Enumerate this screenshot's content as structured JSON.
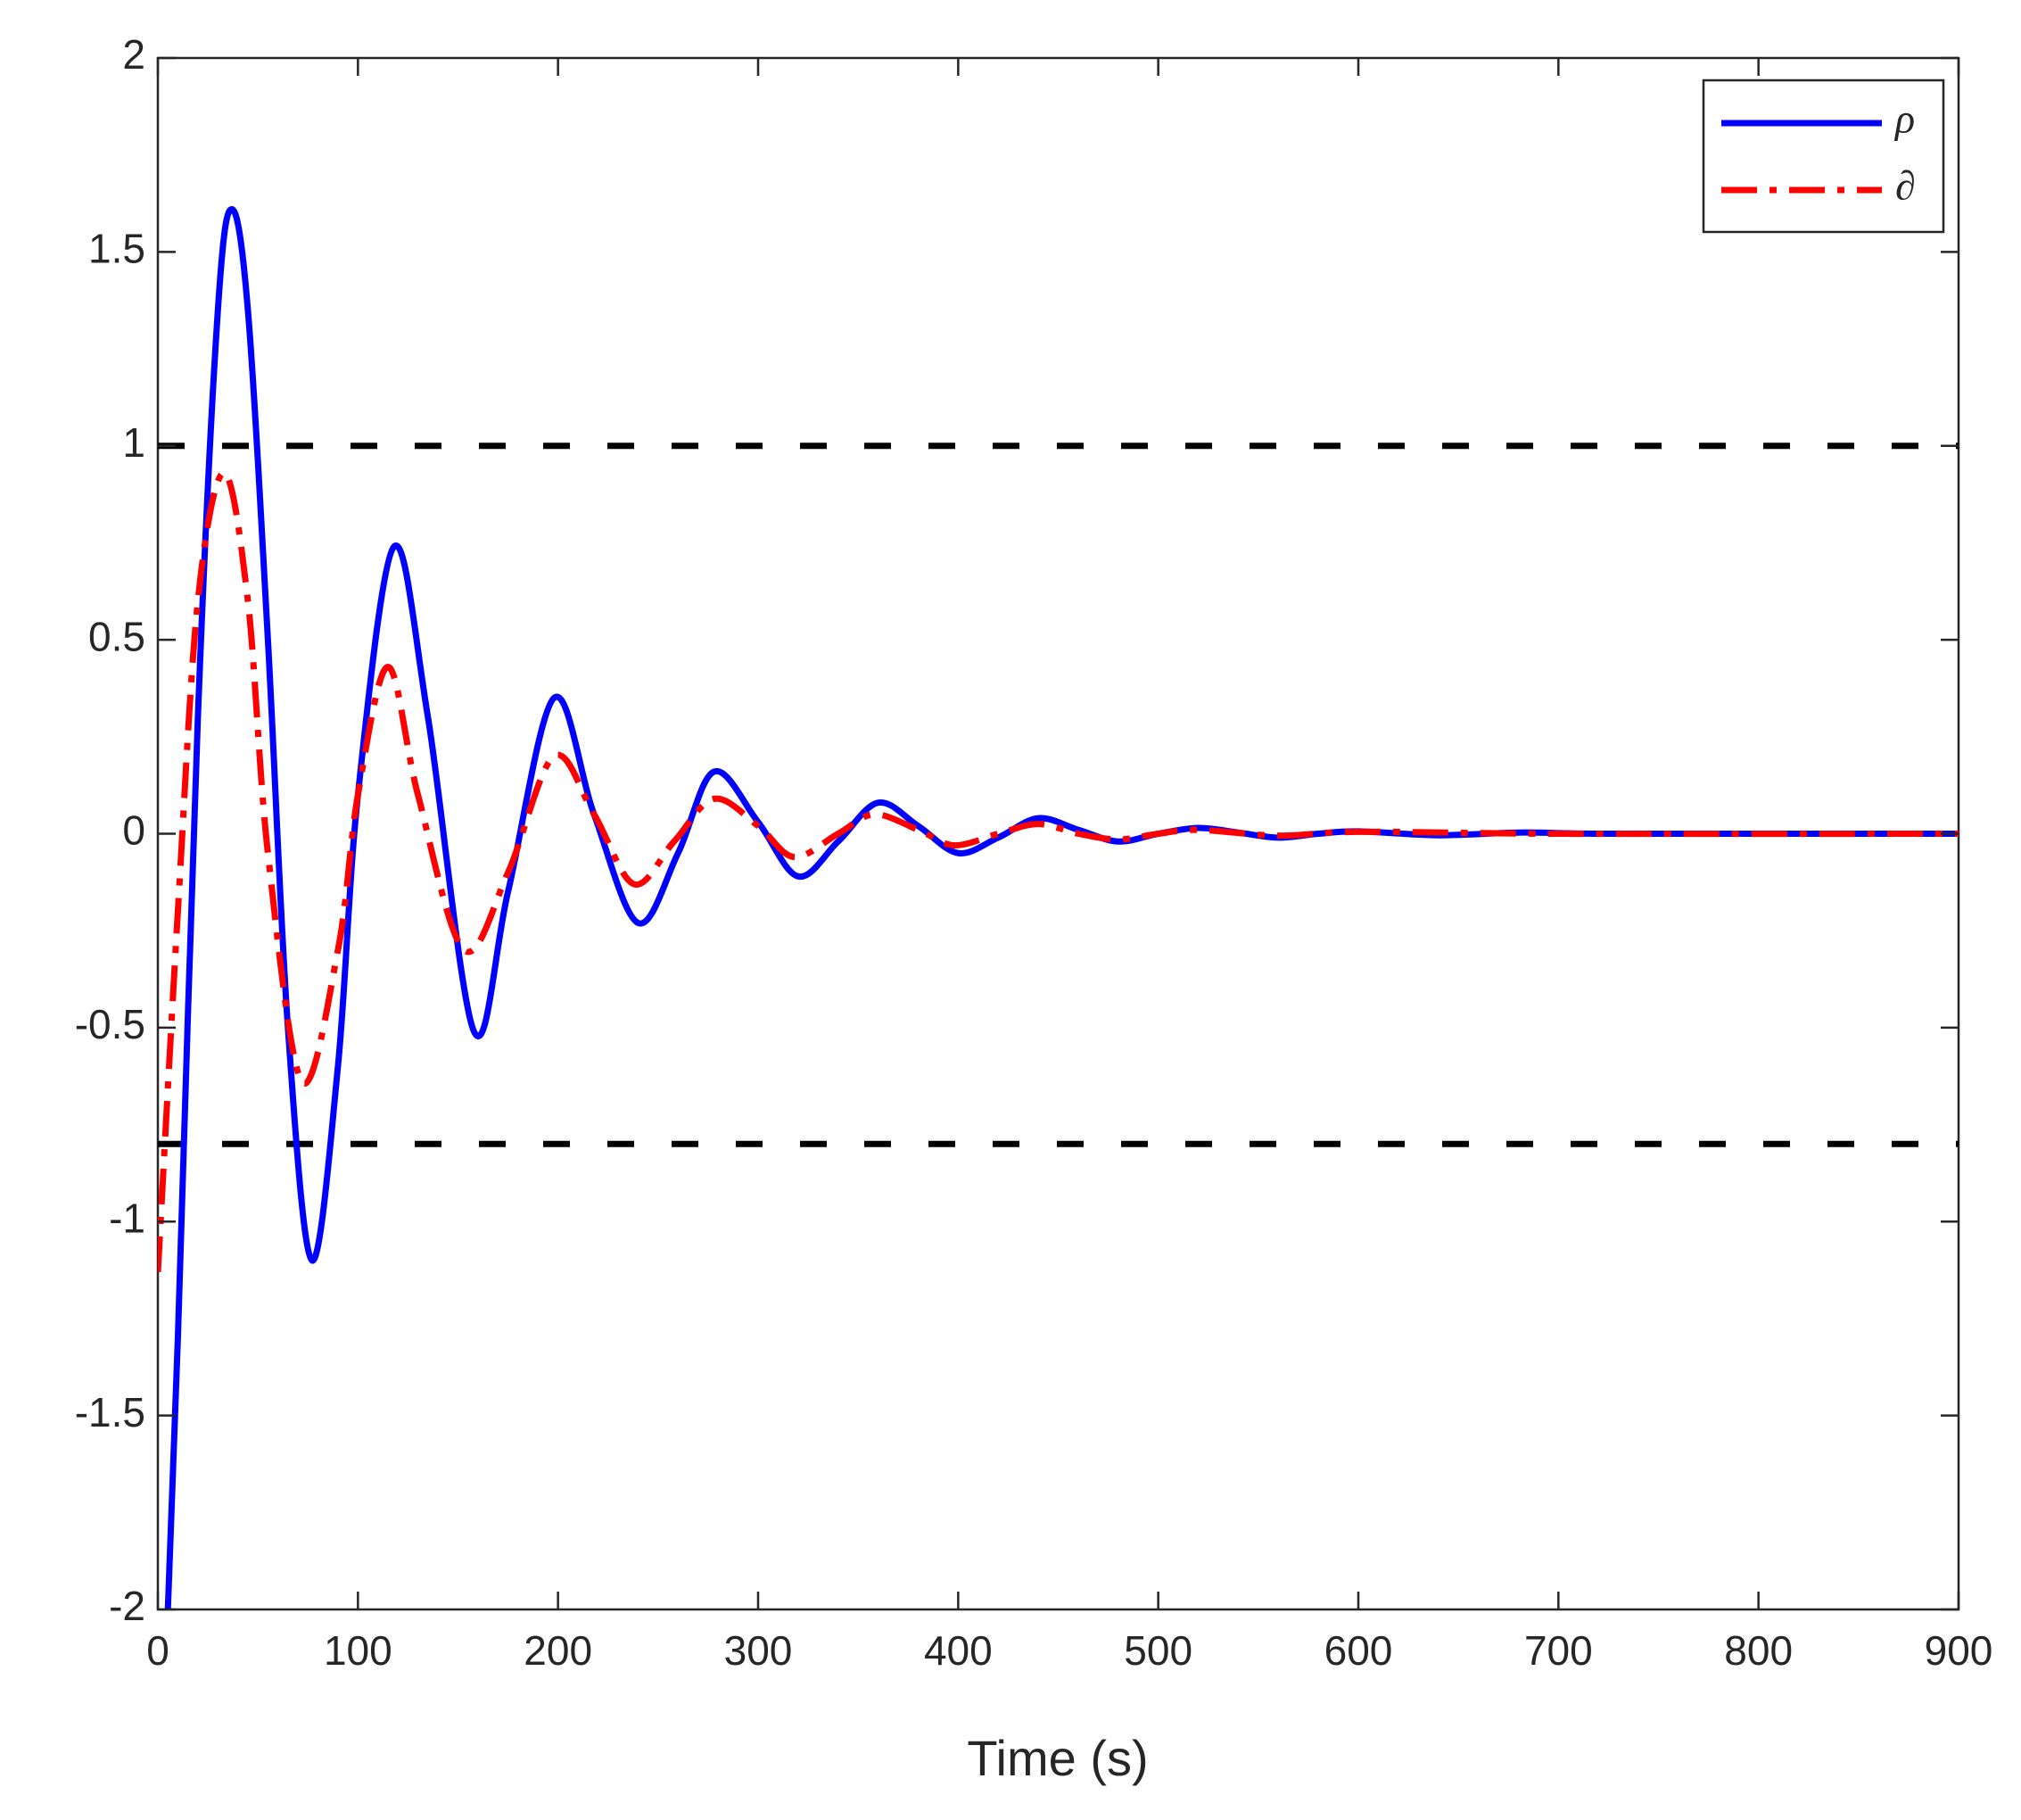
{
  "chart_data": {
    "type": "line",
    "x_label": "Time (s)",
    "xlim": [
      0,
      900
    ],
    "xticks": [
      0,
      100,
      200,
      300,
      400,
      500,
      600,
      700,
      800,
      900
    ],
    "ylim": [
      -2,
      2
    ],
    "yticks": [
      -2,
      -1.5,
      -1,
      -0.5,
      0,
      0.5,
      1,
      1.5,
      2
    ],
    "reference_lines": [
      1,
      -0.8
    ],
    "reference_color": "#000000",
    "legend": "upper right",
    "series": [
      {
        "name": "ρ",
        "color": "#0000ff",
        "style": "solid",
        "x": [
          5,
          10,
          20,
          30,
          37,
          45,
          55,
          65,
          77,
          90,
          100,
          118,
          135,
          158,
          175,
          198,
          218,
          240,
          260,
          278,
          300,
          320,
          340,
          360,
          380,
          400,
          420,
          440,
          460,
          480,
          500,
          520,
          540,
          560,
          580,
          600,
          640,
          680,
          720,
          800,
          900
        ],
        "values": [
          -2,
          -1.3,
          0.3,
          1.35,
          1.61,
          1.35,
          0.5,
          -0.5,
          -1.1,
          -0.6,
          0.1,
          0.74,
          0.3,
          -0.51,
          -0.15,
          0.35,
          0.05,
          -0.23,
          -0.05,
          0.16,
          0.03,
          -0.11,
          -0.02,
          0.08,
          0.02,
          -0.05,
          -0.01,
          0.04,
          0.01,
          -0.02,
          0,
          0.015,
          0.003,
          -0.01,
          0,
          0.006,
          -0.004,
          0.003,
          0,
          0,
          0
        ]
      },
      {
        "name": "∂",
        "color": "#ff0000",
        "style": "dashdot",
        "x": [
          0,
          10,
          20,
          33,
          45,
          55,
          72,
          90,
          100,
          115,
          130,
          153,
          175,
          198,
          218,
          238,
          258,
          278,
          300,
          318,
          340,
          358,
          380,
          398,
          420,
          440,
          460,
          480,
          500,
          520,
          560,
          600,
          700,
          900
        ],
        "values": [
          -1.13,
          -0.2,
          0.6,
          0.93,
          0.6,
          -0.05,
          -0.64,
          -0.3,
          0.1,
          0.43,
          0.1,
          -0.3,
          -0.1,
          0.2,
          0.05,
          -0.13,
          -0.02,
          0.09,
          0.02,
          -0.06,
          0,
          0.05,
          0.01,
          -0.03,
          0,
          0.025,
          0,
          -0.015,
          0,
          0.01,
          -0.005,
          0.005,
          0,
          0
        ]
      }
    ]
  }
}
